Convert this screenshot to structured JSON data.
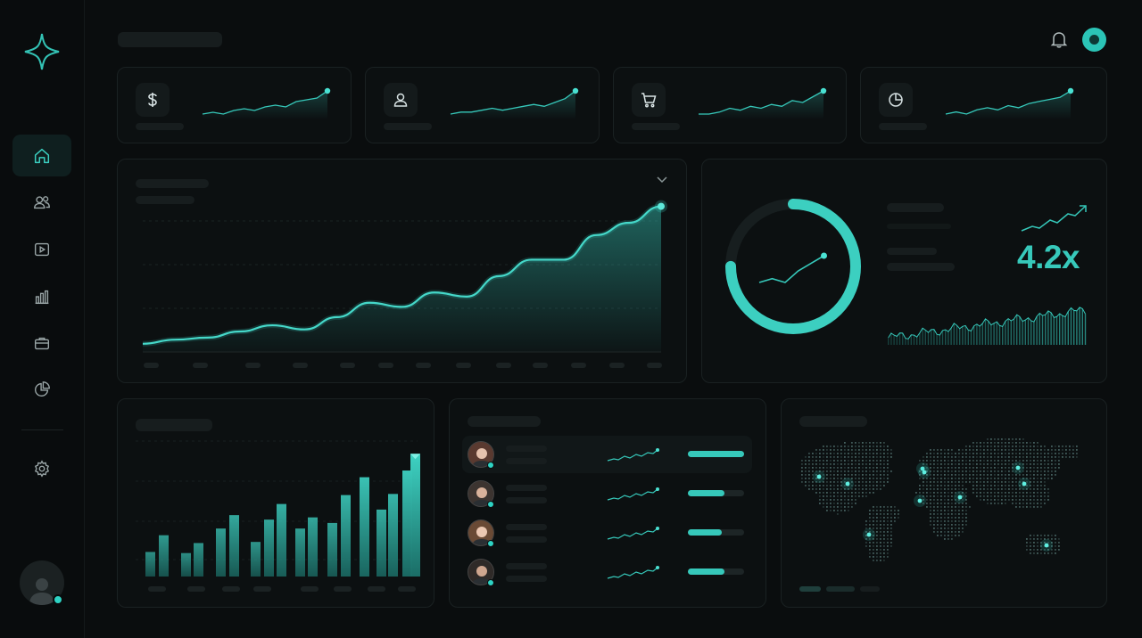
{
  "colors": {
    "accent": "#36c8ba",
    "background": "#0a0d0e",
    "card": "#0c1011"
  },
  "sidebar": {
    "logo": "sparkle-logo",
    "items": [
      {
        "icon": "home-icon",
        "active": true
      },
      {
        "icon": "users-icon",
        "active": false
      },
      {
        "icon": "video-icon",
        "active": false
      },
      {
        "icon": "bar-chart-icon",
        "active": false
      },
      {
        "icon": "briefcase-icon",
        "active": false
      },
      {
        "icon": "pie-chart-icon",
        "active": false
      }
    ],
    "settings_icon": "gear-icon",
    "profile_icon": "avatar"
  },
  "header": {
    "notification_icon": "bell-icon"
  },
  "stat_cards": [
    {
      "icon": "dollar-icon",
      "trend": [
        5,
        6,
        5,
        7,
        8,
        7,
        9,
        10,
        9,
        12,
        13,
        14,
        18
      ]
    },
    {
      "icon": "user-icon",
      "trend": [
        5,
        6,
        6,
        7,
        8,
        7,
        8,
        9,
        10,
        9,
        11,
        13,
        17
      ]
    },
    {
      "icon": "cart-icon",
      "trend": [
        5,
        5,
        6,
        8,
        7,
        9,
        8,
        10,
        9,
        12,
        11,
        14,
        17
      ]
    },
    {
      "icon": "pie-chart-icon",
      "trend": [
        5,
        6,
        5,
        7,
        8,
        7,
        9,
        8,
        10,
        11,
        12,
        13,
        16
      ]
    }
  ],
  "main_chart": {
    "dropdown_icon": "chevron-down-icon",
    "values": [
      4,
      6,
      7,
      10,
      13,
      11,
      17,
      24,
      22,
      29,
      27,
      37,
      45,
      45,
      57,
      63,
      71
    ]
  },
  "ratio_card": {
    "progress": 0.75,
    "value": "4.2x",
    "spark": [
      5,
      6,
      5,
      8,
      10,
      12
    ]
  },
  "bar_chart": {
    "values": [
      22,
      37,
      21,
      30,
      43,
      55,
      31,
      51,
      65,
      43,
      53,
      48,
      73,
      89,
      60,
      74,
      95,
      110
    ]
  },
  "people_list": [
    {
      "progress": 1.0,
      "avatar": "avatar-woman-1"
    },
    {
      "progress": 0.65,
      "avatar": "avatar-man-1"
    },
    {
      "progress": 0.6,
      "avatar": "avatar-woman-2"
    },
    {
      "progress": 0.65,
      "avatar": "avatar-man-2"
    }
  ],
  "world_map": {
    "hotspots": 10
  }
}
